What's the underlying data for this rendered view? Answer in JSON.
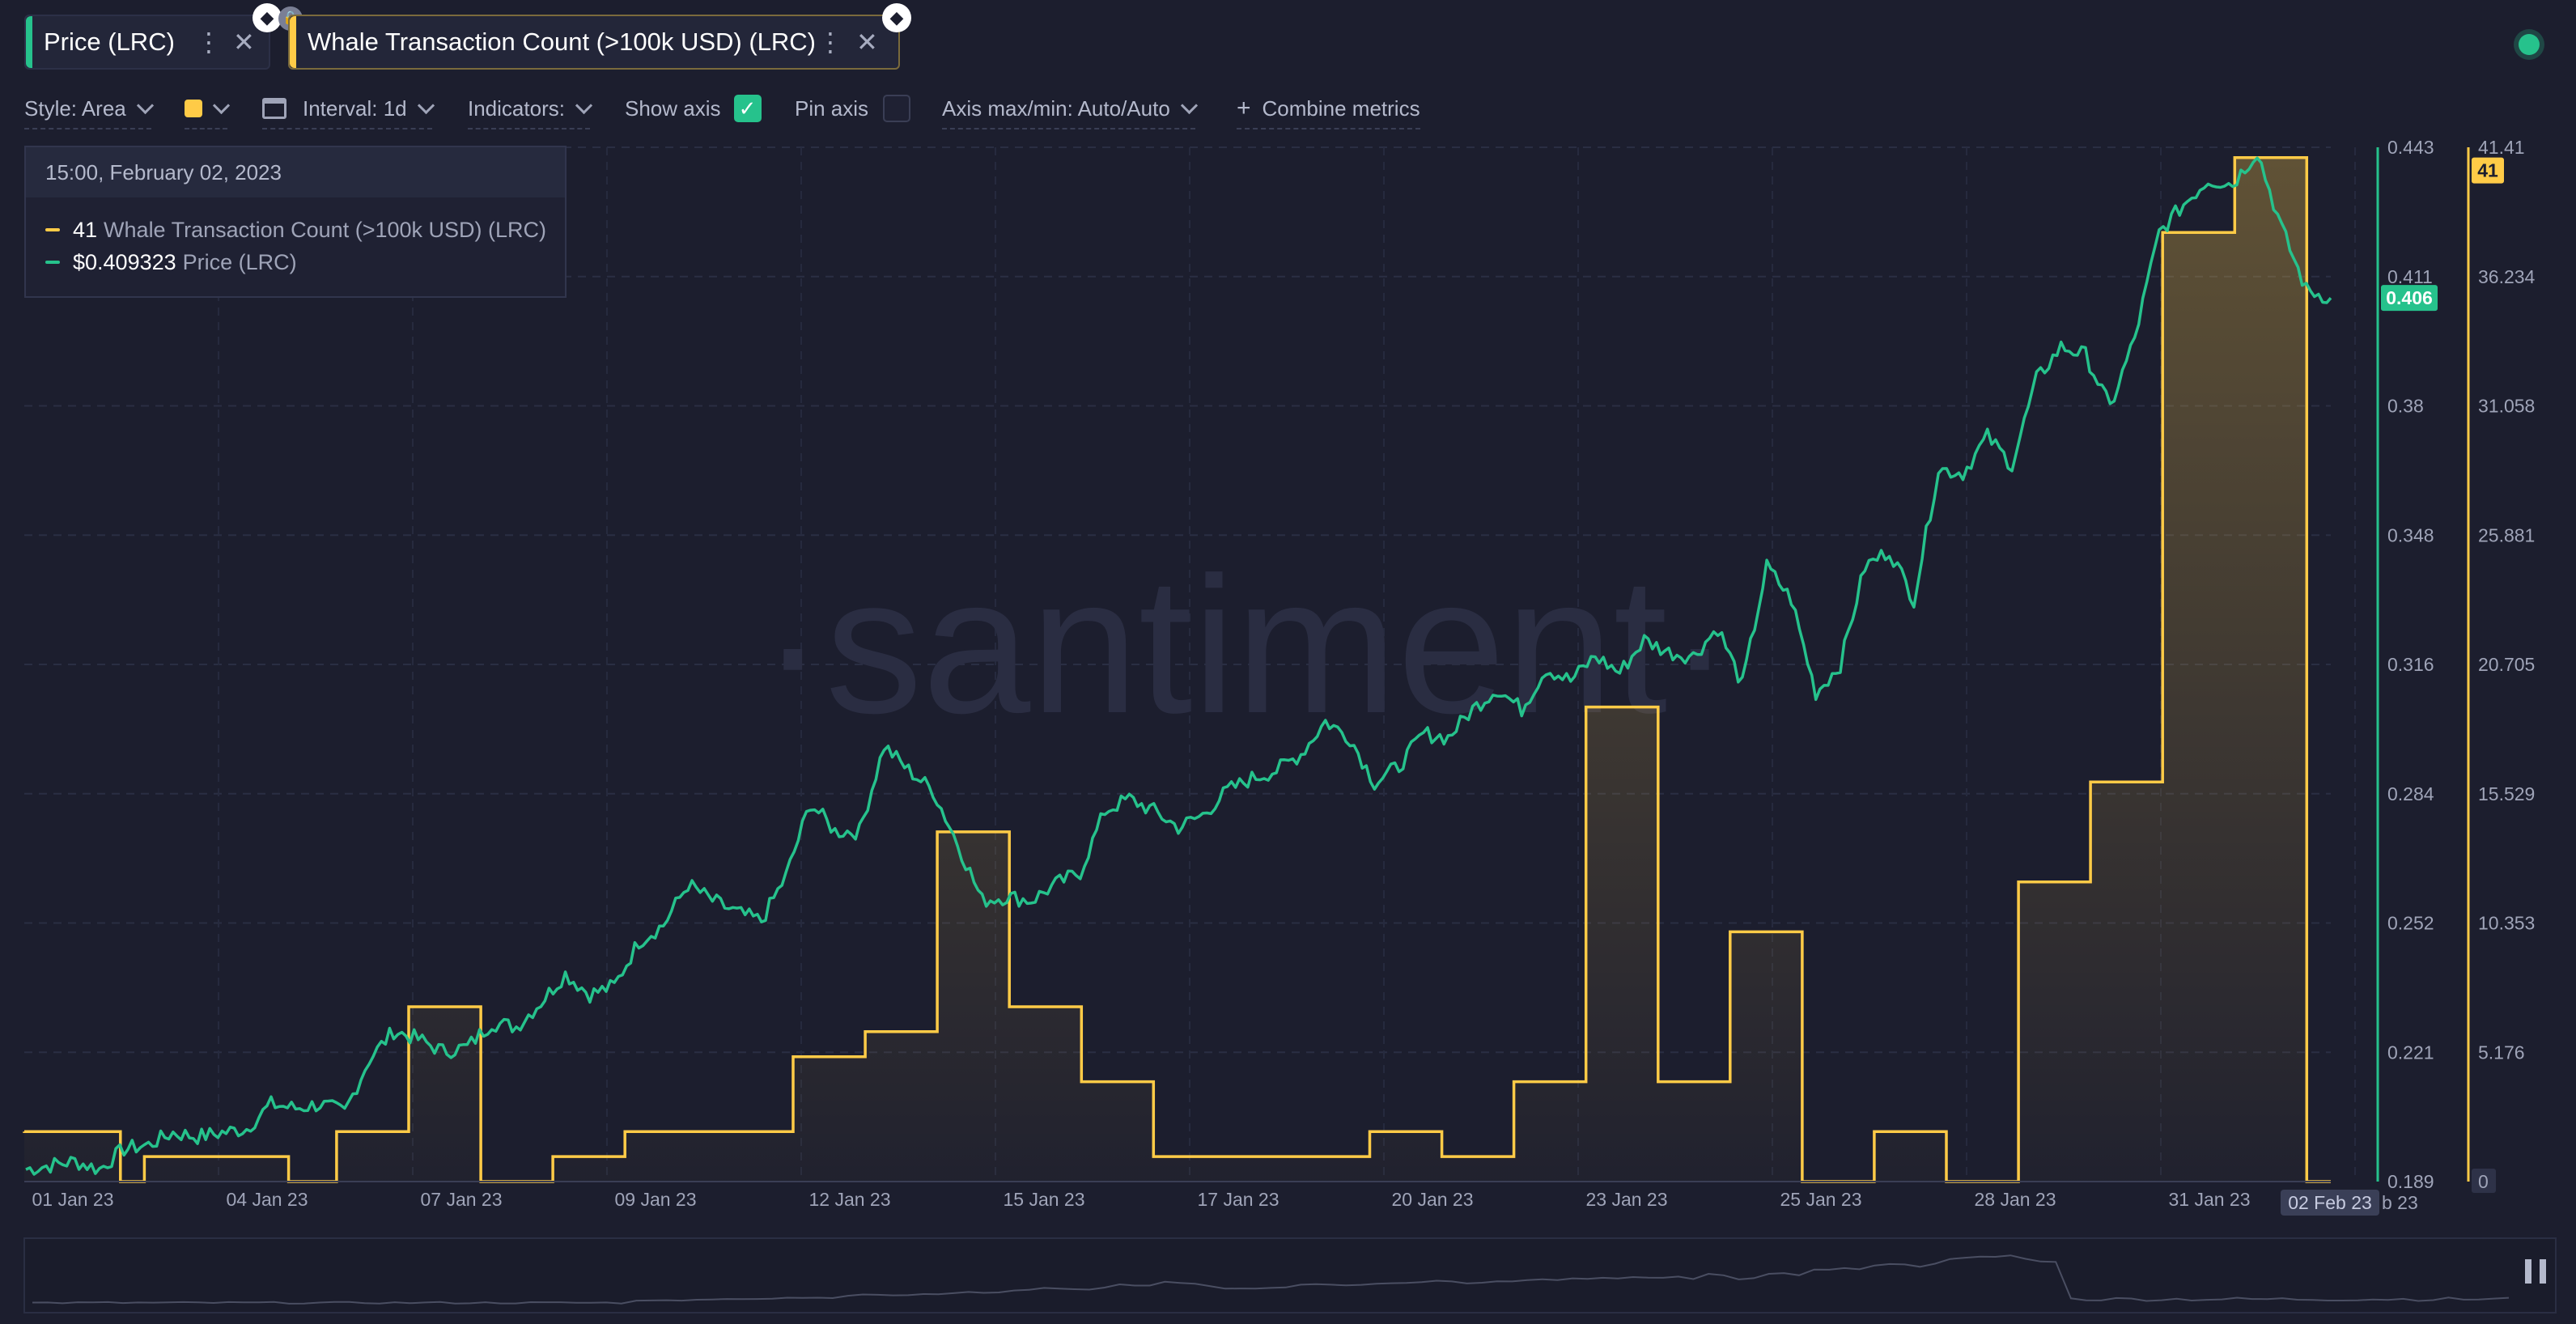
{
  "tabs": [
    {
      "label": "Price (LRC)",
      "color": "#26c28c"
    },
    {
      "label": "Whale Transaction Count (>100k USD) (LRC)",
      "color": "#ffcb47"
    }
  ],
  "toolbar": {
    "style": "Style: Area",
    "interval": "Interval: 1d",
    "indicators": "Indicators:",
    "show_axis": "Show axis",
    "pin_axis": "Pin axis",
    "axis_maxmin": "Axis max/min: Auto/Auto",
    "combine": "Combine metrics"
  },
  "tooltip": {
    "date": "15:00, February 02, 2023",
    "whale_value": "41",
    "whale_label": "Whale Transaction Count (>100k USD) (LRC)",
    "price_value": "$0.409323",
    "price_label": "Price (LRC)"
  },
  "watermark": "·santiment·",
  "chart_data": {
    "type": "area",
    "x_labels": [
      "01 Jan 23",
      "04 Jan 23",
      "07 Jan 23",
      "09 Jan 23",
      "12 Jan 23",
      "15 Jan 23",
      "17 Jan 23",
      "20 Jan 23",
      "23 Jan 23",
      "25 Jan 23",
      "28 Jan 23",
      "31 Jan 23"
    ],
    "x_highlight": "02 Feb 23",
    "x_trailing": "b 23",
    "price_axis": {
      "ticks": [
        "0.443",
        "0.411",
        "0.38",
        "0.348",
        "0.316",
        "0.284",
        "0.252",
        "0.221",
        "0.189"
      ],
      "min": 0.189,
      "max": 0.443,
      "current": "0.406",
      "color": "#26c28c"
    },
    "whale_axis": {
      "ticks": [
        "41.41",
        "36.234",
        "31.058",
        "25.881",
        "20.705",
        "15.529",
        "10.353",
        "5.176",
        "0"
      ],
      "min": 0,
      "max": 41.41,
      "current": "41",
      "color": "#ffcb47"
    },
    "series": [
      {
        "name": "Whale Transaction Count (>100k USD) (LRC)",
        "color": "#ffcb47",
        "step": true,
        "values": [
          2,
          2,
          2,
          2,
          0,
          1,
          1,
          1,
          1,
          1,
          1,
          0,
          0,
          2,
          2,
          2,
          7,
          7,
          7,
          0,
          0,
          0,
          1,
          1,
          1,
          2,
          2,
          2,
          2,
          2,
          2,
          2,
          5,
          5,
          5,
          6,
          6,
          6,
          14,
          14,
          14,
          7,
          7,
          7,
          4,
          4,
          4,
          1,
          1,
          1,
          1,
          1,
          1,
          1,
          1,
          1,
          2,
          2,
          2,
          1,
          1,
          1,
          4,
          4,
          4,
          19,
          19,
          19,
          4,
          4,
          4,
          10,
          10,
          10,
          0,
          0,
          0,
          2,
          2,
          2,
          0,
          0,
          0,
          12,
          12,
          12,
          16,
          16,
          16,
          38,
          38,
          38,
          41,
          41,
          41,
          0
        ]
      },
      {
        "name": "Price (LRC)",
        "color": "#26c28c",
        "values": [
          0.192,
          0.193,
          0.194,
          0.192,
          0.197,
          0.198,
          0.201,
          0.2,
          0.201,
          0.202,
          0.208,
          0.207,
          0.208,
          0.206,
          0.219,
          0.226,
          0.224,
          0.221,
          0.222,
          0.228,
          0.227,
          0.233,
          0.24,
          0.235,
          0.237,
          0.248,
          0.252,
          0.262,
          0.258,
          0.255,
          0.253,
          0.264,
          0.282,
          0.275,
          0.275,
          0.296,
          0.29,
          0.285,
          0.272,
          0.258,
          0.259,
          0.258,
          0.262,
          0.265,
          0.28,
          0.283,
          0.28,
          0.276,
          0.279,
          0.285,
          0.288,
          0.29,
          0.294,
          0.302,
          0.298,
          0.287,
          0.291,
          0.299,
          0.298,
          0.305,
          0.31,
          0.305,
          0.315,
          0.312,
          0.318,
          0.314,
          0.322,
          0.319,
          0.318,
          0.325,
          0.311,
          0.34,
          0.332,
          0.309,
          0.316,
          0.34,
          0.344,
          0.332,
          0.364,
          0.363,
          0.372,
          0.365,
          0.386,
          0.394,
          0.392,
          0.379,
          0.396,
          0.422,
          0.429,
          0.435,
          0.434,
          0.442,
          0.423,
          0.408,
          0.406
        ]
      }
    ]
  }
}
